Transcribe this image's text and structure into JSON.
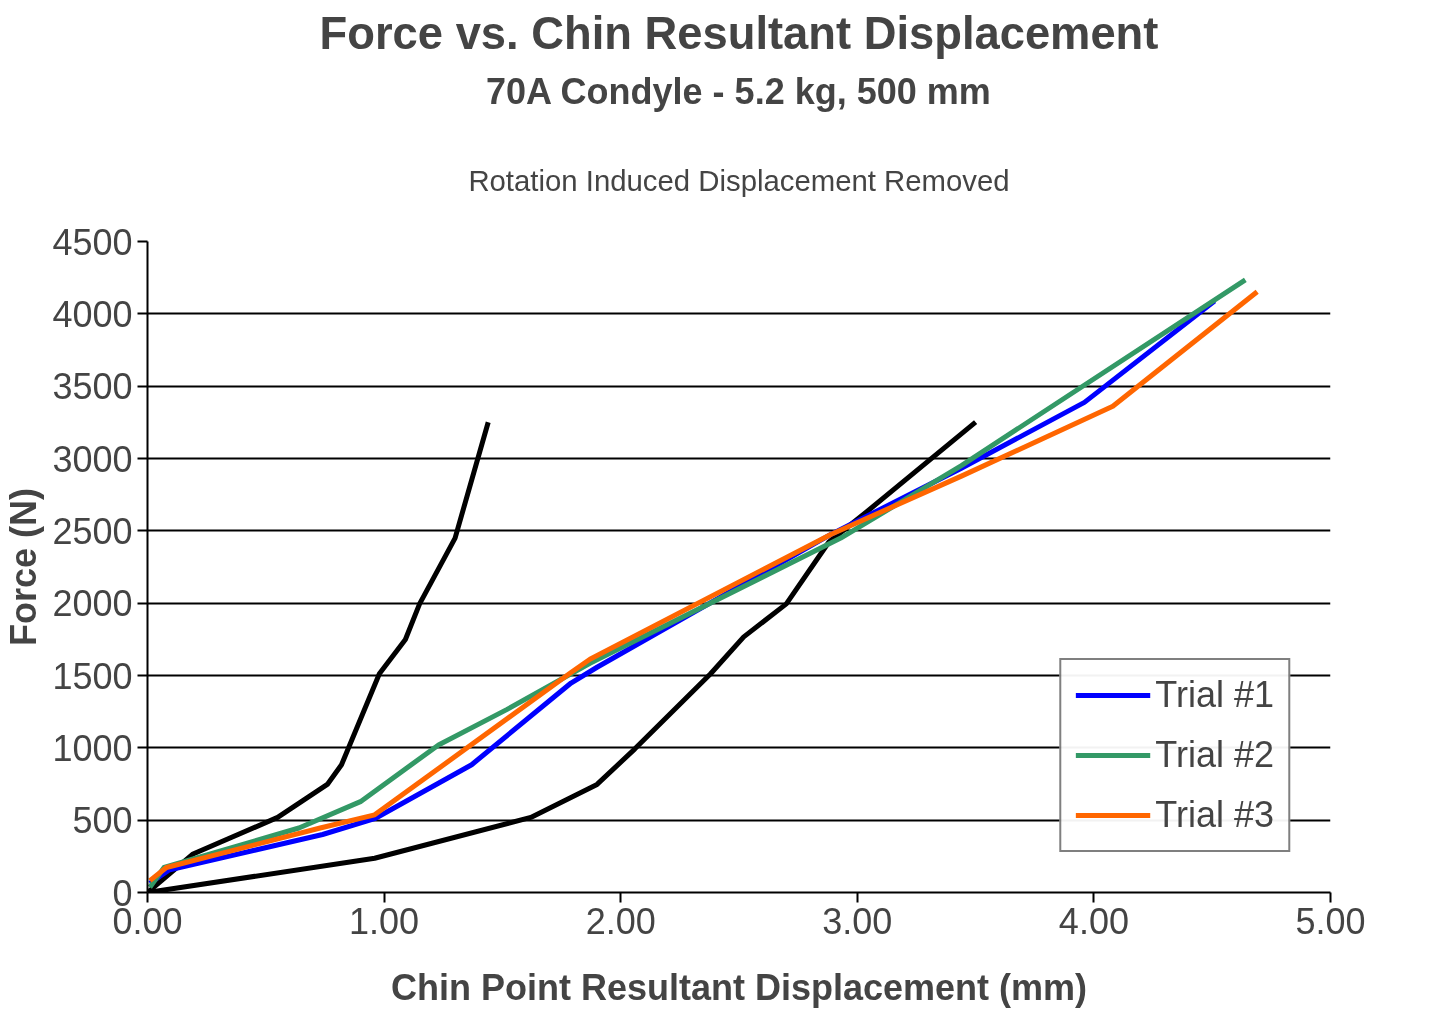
{
  "chart_data": {
    "type": "line",
    "title": "Force vs. Chin Resultant Displacement",
    "subtitle": "70A Condyle - 5.2 kg, 500 mm",
    "annotations": [
      "Rotation Induced Displacement Removed"
    ],
    "xlabel": "Chin Point Resultant Displacement (mm)",
    "ylabel": "Force (N)",
    "xlim": [
      0,
      5
    ],
    "ylim": [
      0,
      4500
    ],
    "xticks": [
      {
        "value": 0,
        "label": "0.00"
      },
      {
        "value": 1,
        "label": "1.00"
      },
      {
        "value": 2,
        "label": "2.00"
      },
      {
        "value": 3,
        "label": "3.00"
      },
      {
        "value": 4,
        "label": "4.00"
      },
      {
        "value": 5,
        "label": "5.00"
      }
    ],
    "yticks": [
      0,
      500,
      1000,
      1500,
      2000,
      2500,
      3000,
      3500,
      4000,
      4500
    ],
    "grid": "y",
    "legend": "bottom right",
    "line_style": "solid",
    "marker": "none",
    "series": [
      {
        "color": "#000000",
        "x": [
          0,
          0.19,
          0.55,
          0.76,
          0.82,
          0.98,
          1.09,
          1.15,
          1.3,
          1.44
        ],
        "values": [
          0,
          264,
          519,
          747,
          883,
          1512,
          1749,
          1995,
          2450,
          3251
        ]
      },
      {
        "color": "#000000",
        "x": [
          0,
          0.96,
          1.62,
          1.9,
          2.06,
          2.38,
          2.52,
          2.7,
          2.88,
          3.04,
          3.5
        ],
        "values": [
          0,
          237,
          519,
          747,
          993,
          1512,
          1767,
          1995,
          2423,
          2632,
          3251
        ]
      },
      {
        "name": "Trial #1",
        "color": "#0000ff",
        "x": [
          0.01,
          0.09,
          0.74,
          0.96,
          1.37,
          1.79,
          1.9,
          2.89,
          3.44,
          3.96,
          4.51
        ],
        "values": [
          64,
          155,
          401,
          510,
          883,
          1448,
          1557,
          2477,
          2933,
          3388,
          4089
        ]
      },
      {
        "name": "Trial #2",
        "color": "#339966",
        "x": [
          0.01,
          0.07,
          0.64,
          0.9,
          1.23,
          1.52,
          1.87,
          2.93,
          3.44,
          4.64
        ],
        "values": [
          36,
          173,
          446,
          628,
          1020,
          1266,
          1585,
          2450,
          2951,
          4235
        ]
      },
      {
        "name": "Trial #3",
        "color": "#ff6600",
        "x": [
          0.01,
          0.08,
          0.73,
          0.96,
          1.79,
          1.87,
          2.89,
          3.44,
          4.08,
          4.69
        ],
        "values": [
          82,
          173,
          446,
          537,
          1521,
          1612,
          2477,
          2878,
          3361,
          4153
        ]
      }
    ]
  }
}
